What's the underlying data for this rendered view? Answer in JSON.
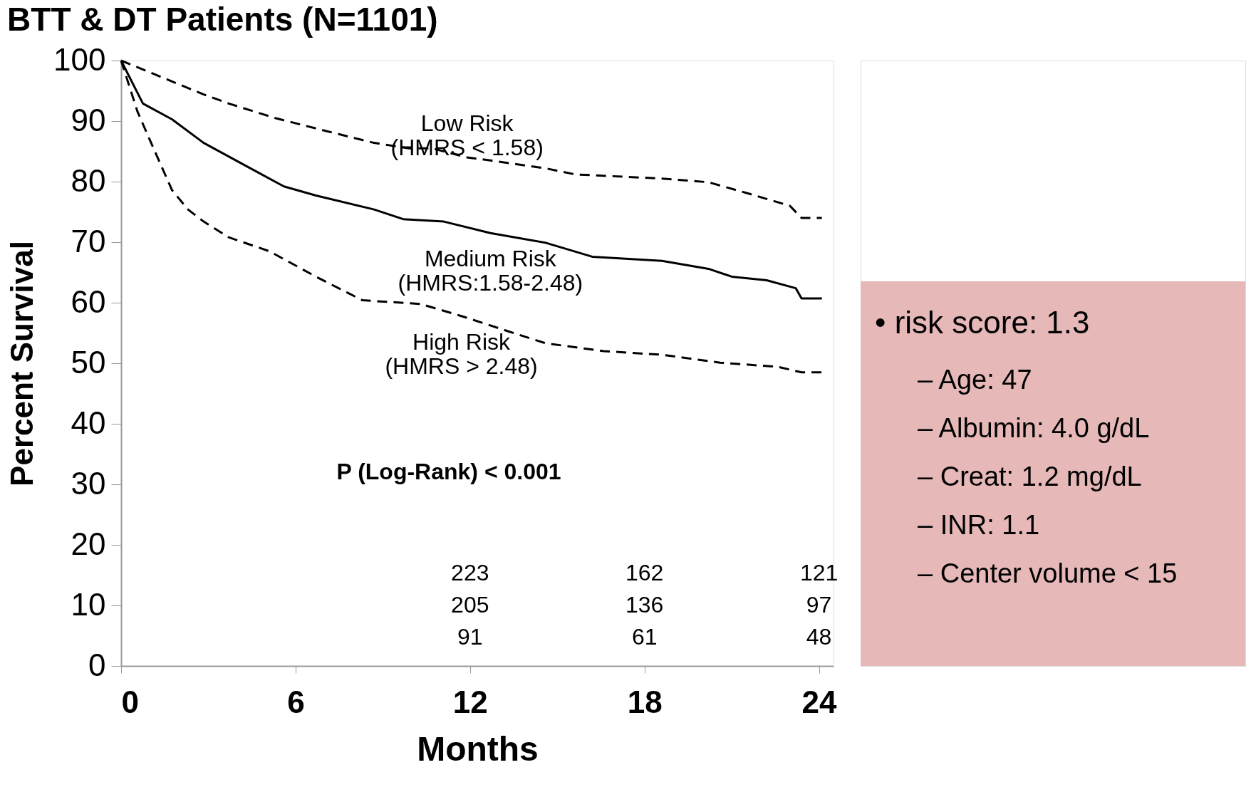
{
  "chart_data": {
    "type": "line",
    "title": "BTT & DT Patients (N=1101)",
    "xlabel": "Months",
    "ylabel": "Percent Survival",
    "xlim": [
      0,
      24.5
    ],
    "xticks": [
      0,
      6,
      12,
      18,
      24
    ],
    "ylim": [
      0,
      100
    ],
    "yticks": [
      0,
      10,
      20,
      30,
      40,
      50,
      60,
      70,
      80,
      90,
      100
    ],
    "grid": false,
    "marker": "none",
    "series": [
      {
        "name": "Low Risk\n(HMRS < 1.58)",
        "color": "#000000",
        "line_style": "dashed",
        "x": [
          0,
          2.84,
          3.7,
          5.3,
          7.1,
          8.7,
          9.9,
          10.7,
          11.9,
          12.7,
          14.6,
          15.6,
          18.6,
          20.2,
          21.6,
          23,
          23.4,
          24.1
        ],
        "values": [
          100,
          94.4,
          92.9,
          90.5,
          88.3,
          86.4,
          85.5,
          85.5,
          84,
          83.5,
          82.2,
          81.2,
          80.5,
          79.9,
          78,
          76,
          74,
          74
        ]
      },
      {
        "name": "Medium Risk\n(HMRS:1.58-2.48)",
        "color": "#000000",
        "line_style": "solid",
        "x": [
          0,
          0.75,
          1.75,
          2.84,
          4.1,
          5.6,
          6.7,
          8.7,
          9.7,
          11.1,
          12.7,
          14.6,
          16.2,
          18.6,
          20.2,
          21,
          22.2,
          23.2,
          23.4,
          24.1
        ],
        "values": [
          100,
          92.9,
          90.3,
          86.4,
          83.1,
          79.2,
          77.7,
          75.4,
          73.8,
          73.4,
          71.5,
          69.9,
          67.6,
          66.9,
          65.6,
          64.3,
          63.7,
          62.4,
          60.7,
          60.7
        ]
      },
      {
        "name": "High Risk\n(HMRS > 2.48)",
        "color": "#000000",
        "line_style": "dashed",
        "x": [
          0,
          0.56,
          1.15,
          1.75,
          2.3,
          2.84,
          3.7,
          5.1,
          6.7,
          8.3,
          10.3,
          11.7,
          13.3,
          14.6,
          16.6,
          18.6,
          20.6,
          22.6,
          23.4,
          24.1
        ],
        "values": [
          100,
          91.6,
          85.1,
          78.6,
          75.4,
          73.4,
          70.8,
          68.5,
          64.3,
          60.4,
          59.8,
          57.8,
          55.3,
          53.3,
          52,
          51.4,
          50.1,
          49.4,
          48.5,
          48.5
        ]
      }
    ],
    "annotations": [
      "P (Log-Rank) < 0.001",
      "223",
      "205",
      "91",
      "162",
      "136",
      "61",
      "121",
      "97",
      "48",
      "• risk score: 1.3",
      "– Age: 47",
      "– Albumin: 4.0 g/dL",
      "– Creat: 1.2 mg/dL",
      "– INR: 1.1",
      "– Center volume < 15"
    ]
  }
}
